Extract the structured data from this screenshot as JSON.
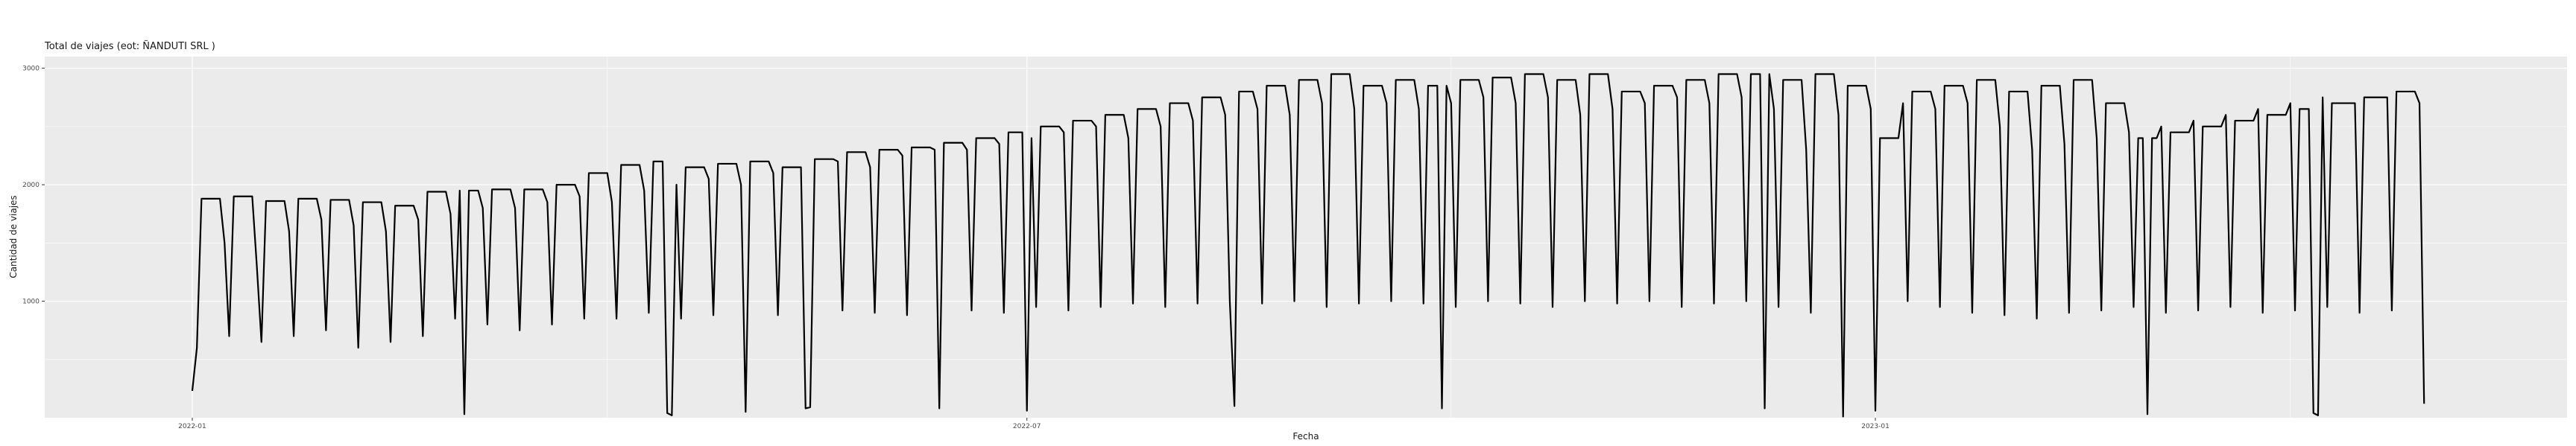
{
  "chart_data": {
    "type": "line",
    "title": "Total de viajes (eot: ÑANDUTI SRL )",
    "xlabel": "Fecha",
    "ylabel": "Cantidad de viajes",
    "x_start": "2022-01-01",
    "x_end": "2023-04-30",
    "xlim": [
      "2021-11-30",
      "2023-05-31"
    ],
    "ylim": [
      0,
      3100
    ],
    "x_ticks": [
      {
        "date": "2022-01-01",
        "label": "2022-01"
      },
      {
        "date": "2022-07-01",
        "label": "2022-07"
      },
      {
        "date": "2023-01-01",
        "label": "2023-01"
      }
    ],
    "y_ticks": [
      {
        "value": 1000,
        "label": "1000"
      },
      {
        "value": 2000,
        "label": "2000"
      },
      {
        "value": 3000,
        "label": "3000"
      }
    ],
    "grid": true,
    "line_color": "#000000",
    "panel_background": "#ebebeb",
    "grid_color": "#ffffff",
    "weekly_pattern": {
      "weekday_values": [
        1880,
        1900,
        1860,
        1880,
        1870,
        1850,
        1820,
        1940,
        1950,
        1960,
        1960,
        2000,
        2100,
        2170,
        2200,
        2150,
        2180,
        2200,
        2150,
        2220,
        2280,
        2300,
        2320,
        2360,
        2400,
        2450,
        2500,
        2550,
        2600,
        2650,
        2700,
        2750,
        2800,
        2850,
        2900,
        2950,
        2850,
        2900,
        2850,
        2900,
        2920,
        2950,
        2900,
        2950,
        2800,
        2850,
        2900,
        2950,
        2950,
        2900,
        2950,
        2850,
        2400,
        2800,
        2850,
        2900,
        2800,
        2850,
        2900,
        2700,
        2400,
        2450,
        2500,
        2550,
        2600,
        2650,
        2700,
        2750,
        2800,
        2850
      ],
      "saturday_values": [
        1400,
        1500,
        1300,
        1600,
        1700,
        1650,
        1600,
        1700,
        1750,
        1800,
        1800,
        1850,
        1900,
        1850,
        1950,
        2000,
        2050,
        2000,
        2100,
        2100,
        2200,
        2150,
        2250,
        2300,
        2300,
        2350,
        2400,
        2450,
        2500,
        2400,
        2500,
        2550,
        2600,
        2650,
        2600,
        2700,
        2650,
        2700,
        2650,
        2700,
        2750,
        2700,
        2750,
        2600,
        2650,
        2700,
        2750,
        2700,
        2750,
        2650,
        2300,
        2600,
        2650,
        2700,
        2650,
        2700,
        2500,
        2300,
        2350,
        2400,
        2450,
        2500,
        2550,
        2600,
        2650,
        2700,
        2750,
        2700,
        2750,
        2700
      ],
      "sunday_values": [
        550,
        700,
        650,
        700,
        750,
        600,
        650,
        700,
        850,
        800,
        750,
        800,
        850,
        850,
        900,
        850,
        880,
        850,
        880,
        900,
        920,
        900,
        880,
        900,
        920,
        900,
        950,
        920,
        950,
        980,
        950,
        980,
        1000,
        980,
        1000,
        950,
        980,
        1000,
        980,
        950,
        1000,
        980,
        950,
        1000,
        980,
        1000,
        950,
        980,
        1000,
        950,
        900,
        950,
        980,
        1000,
        950,
        900,
        880,
        850,
        900,
        920,
        950,
        900,
        920,
        950,
        900,
        920,
        950,
        900,
        920,
        900
      ]
    },
    "holidays": [
      {
        "date": "2022-01-01",
        "value": 230
      },
      {
        "date": "2022-01-02",
        "value": 600
      },
      {
        "date": "2022-03-01",
        "value": 30
      },
      {
        "date": "2022-04-14",
        "value": 40
      },
      {
        "date": "2022-04-15",
        "value": 20
      },
      {
        "date": "2022-05-01",
        "value": 50
      },
      {
        "date": "2022-05-14",
        "value": 80
      },
      {
        "date": "2022-05-15",
        "value": 90
      },
      {
        "date": "2022-06-12",
        "value": 80
      },
      {
        "date": "2022-07-01",
        "value": 60
      },
      {
        "date": "2022-08-15",
        "value": 100
      },
      {
        "date": "2022-09-29",
        "value": 80
      },
      {
        "date": "2022-12-08",
        "value": 80
      },
      {
        "date": "2022-12-25",
        "value": 10
      },
      {
        "date": "2023-01-01",
        "value": 60
      },
      {
        "date": "2023-03-01",
        "value": 30
      },
      {
        "date": "2023-04-06",
        "value": 40
      },
      {
        "date": "2023-04-07",
        "value": 20
      },
      {
        "date": "2023-04-30",
        "value": 120
      }
    ],
    "series": [
      {
        "values": []
      }
    ]
  }
}
